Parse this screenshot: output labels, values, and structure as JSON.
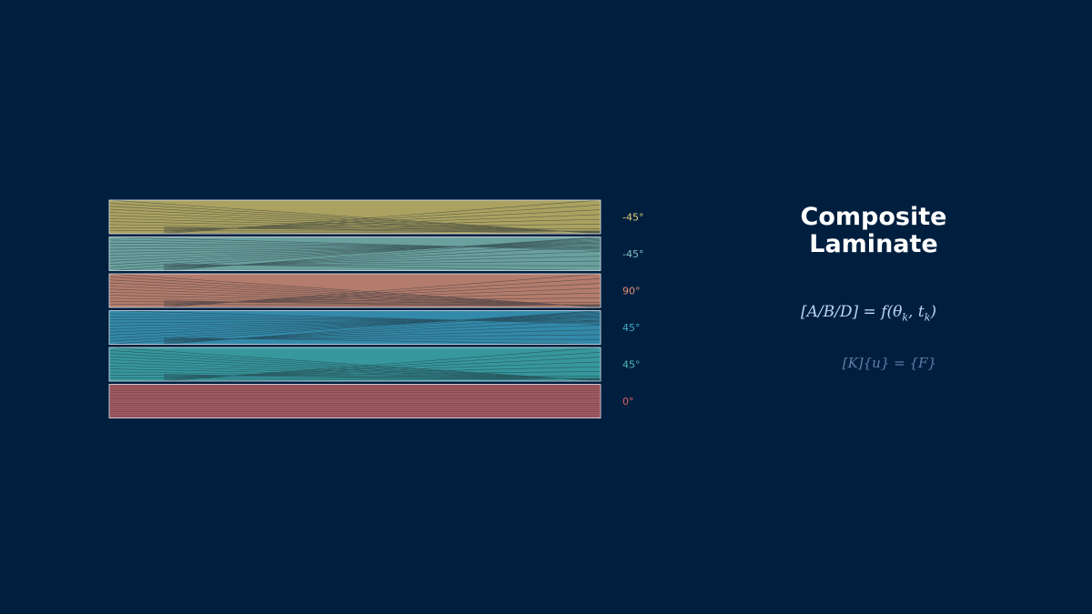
{
  "title": {
    "line1": "Composite",
    "line2": "Laminate"
  },
  "equations": {
    "abd": "[A/B/D] = f(θ_k, t_k)",
    "stiffness": "[K]{u} = {F}"
  },
  "plies": [
    {
      "angle_label": "-45°",
      "fill": "#aba261",
      "label_color": "#e3cd75"
    },
    {
      "angle_label": "-45°",
      "fill": "#6aa09e",
      "label_color": "#7fc0c0"
    },
    {
      "angle_label": "90°",
      "fill": "#b47c6c",
      "label_color": "#e58e75"
    },
    {
      "angle_label": "45°",
      "fill": "#3389a9",
      "label_color": "#43a8c8"
    },
    {
      "angle_label": "45°",
      "fill": "#36979c",
      "label_color": "#4fb8b8"
    },
    {
      "angle_label": "0°",
      "fill": "#a95b62",
      "label_color": "#e06068"
    }
  ],
  "colors": {
    "background": "#001f3f",
    "ply_border": "#dfe6ee",
    "fiber_lines": "#1e2a33"
  }
}
